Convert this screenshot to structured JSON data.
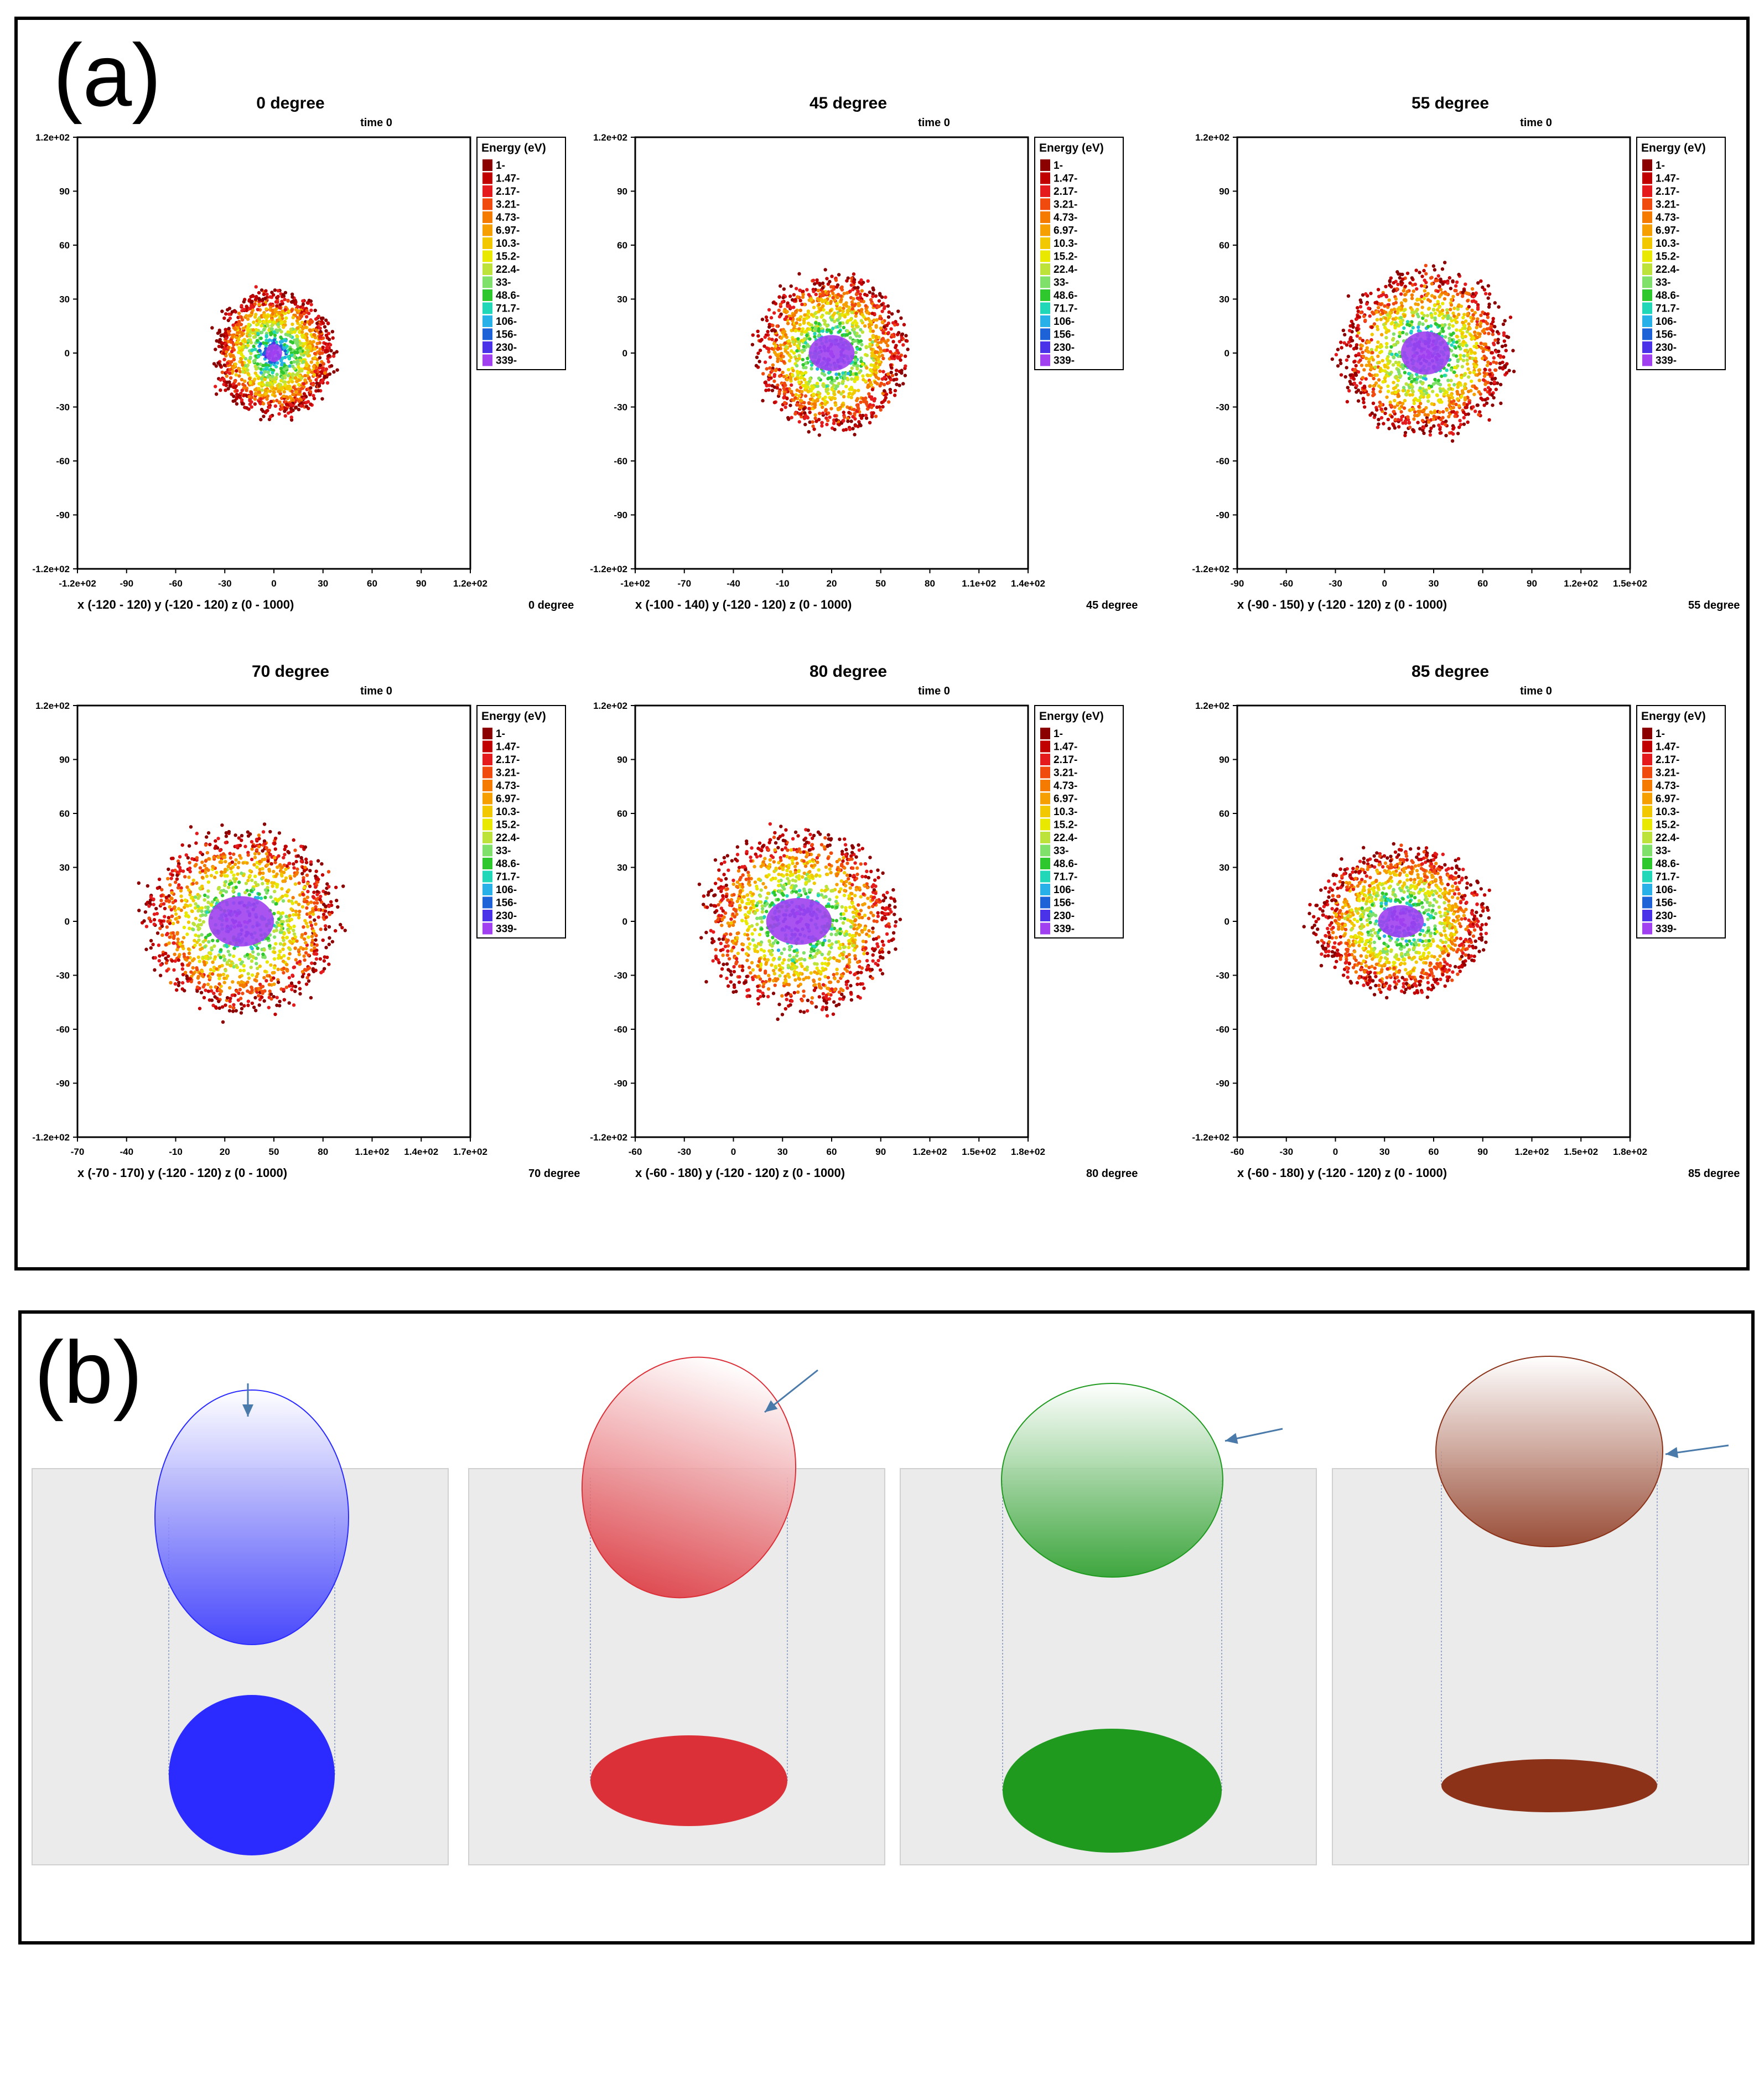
{
  "panel_labels": {
    "a": "(a)",
    "b": "(b)"
  },
  "legend": {
    "title": "Energy (eV)",
    "entries": [
      "1-",
      "1.47-",
      "2.17-",
      "3.21-",
      "4.73-",
      "6.97-",
      "10.3-",
      "15.2-",
      "22.4-",
      "33-",
      "48.6-",
      "71.7-",
      "106-",
      "156-",
      "230-",
      "339-"
    ],
    "colors": [
      "#8b0000",
      "#c00000",
      "#e41a1c",
      "#f04a0f",
      "#f57a00",
      "#f5a000",
      "#f2c800",
      "#e8e800",
      "#bde23a",
      "#7fe06a",
      "#2ec82e",
      "#20d8b8",
      "#28b0e8",
      "#1e62d8",
      "#4a32e8",
      "#a040f0"
    ]
  },
  "chart_data": [
    {
      "type": "scatter",
      "title": "0 degree",
      "subtitle": "time 0",
      "xlabel": "x (-120 - 120) y (-120 - 120) z (0 - 1000)",
      "footnote": "0 degree",
      "xlim": [
        -120,
        120
      ],
      "ylim": [
        -120,
        120
      ],
      "xticks": [
        {
          "v": -120,
          "label": "-1.2e+02"
        },
        {
          "v": -90,
          "label": "-90"
        },
        {
          "v": -60,
          "label": "-60"
        },
        {
          "v": -30,
          "label": "-30"
        },
        {
          "v": 0,
          "label": "0"
        },
        {
          "v": 30,
          "label": "30"
        },
        {
          "v": 60,
          "label": "60"
        },
        {
          "v": 90,
          "label": "90"
        },
        {
          "v": 120,
          "label": "1.2e+02"
        }
      ],
      "yticks": [
        {
          "v": 120,
          "label": "1.2e+02"
        },
        {
          "v": 90,
          "label": "90"
        },
        {
          "v": 60,
          "label": "60"
        },
        {
          "v": 30,
          "label": "30"
        },
        {
          "v": 0,
          "label": "0"
        },
        {
          "v": -30,
          "label": "-30"
        },
        {
          "v": -60,
          "label": "-60"
        },
        {
          "v": -90,
          "label": "-90"
        },
        {
          "v": -120,
          "label": "-1.2e+02"
        }
      ],
      "cloud": {
        "center": [
          0,
          0
        ],
        "radius_x": 36,
        "radius_y": 34,
        "core_radius_x": 5,
        "core_radius_y": 5
      }
    },
    {
      "type": "scatter",
      "title": "45 degree",
      "subtitle": "time 0",
      "xlabel": "x (-100 - 140) y (-120 - 120) z (0 - 1000)",
      "footnote": "45 degree",
      "xlim": [
        -100,
        140
      ],
      "ylim": [
        -120,
        120
      ],
      "xticks": [
        {
          "v": -100,
          "label": "-1e+02"
        },
        {
          "v": -70,
          "label": "-70"
        },
        {
          "v": -40,
          "label": "-40"
        },
        {
          "v": -10,
          "label": "-10"
        },
        {
          "v": 20,
          "label": "20"
        },
        {
          "v": 50,
          "label": "50"
        },
        {
          "v": 80,
          "label": "80"
        },
        {
          "v": 110,
          "label": "1.1e+02"
        },
        {
          "v": 140,
          "label": "1.4e+02"
        }
      ],
      "yticks": [
        {
          "v": 120,
          "label": "1.2e+02"
        },
        {
          "v": 90,
          "label": "90"
        },
        {
          "v": 60,
          "label": "60"
        },
        {
          "v": 30,
          "label": "30"
        },
        {
          "v": 0,
          "label": "0"
        },
        {
          "v": -30,
          "label": "-30"
        },
        {
          "v": -60,
          "label": "-60"
        },
        {
          "v": -90,
          "label": "-90"
        },
        {
          "v": -120,
          "label": "-1.2e+02"
        }
      ],
      "cloud": {
        "center": [
          20,
          0
        ],
        "radius_x": 45,
        "radius_y": 43,
        "core_radius_x": 14,
        "core_radius_y": 10
      }
    },
    {
      "type": "scatter",
      "title": "55 degree",
      "subtitle": "time 0",
      "xlabel": "x (-90 - 150) y (-120 - 120) z (0 - 1000)",
      "footnote": "55 degree",
      "xlim": [
        -90,
        150
      ],
      "ylim": [
        -120,
        120
      ],
      "xticks": [
        {
          "v": -90,
          "label": "-90"
        },
        {
          "v": -60,
          "label": "-60"
        },
        {
          "v": -30,
          "label": "-30"
        },
        {
          "v": 0,
          "label": "0"
        },
        {
          "v": 30,
          "label": "30"
        },
        {
          "v": 60,
          "label": "60"
        },
        {
          "v": 90,
          "label": "90"
        },
        {
          "v": 120,
          "label": "1.2e+02"
        },
        {
          "v": 150,
          "label": "1.5e+02"
        }
      ],
      "yticks": [
        {
          "v": 120,
          "label": "1.2e+02"
        },
        {
          "v": 90,
          "label": "90"
        },
        {
          "v": 60,
          "label": "60"
        },
        {
          "v": 30,
          "label": "30"
        },
        {
          "v": 0,
          "label": "0"
        },
        {
          "v": -30,
          "label": "-30"
        },
        {
          "v": -60,
          "label": "-60"
        },
        {
          "v": -90,
          "label": "-90"
        },
        {
          "v": -120,
          "label": "-1.2e+02"
        }
      ],
      "cloud": {
        "center": [
          25,
          0
        ],
        "radius_x": 50,
        "radius_y": 46,
        "core_radius_x": 15,
        "core_radius_y": 12
      }
    },
    {
      "type": "scatter",
      "title": "70 degree",
      "subtitle": "time 0",
      "xlabel": "x (-70 - 170) y (-120 - 120) z (0 - 1000)",
      "footnote": "70 degree",
      "xlim": [
        -70,
        170
      ],
      "ylim": [
        -120,
        120
      ],
      "xticks": [
        {
          "v": -70,
          "label": "-70"
        },
        {
          "v": -40,
          "label": "-40"
        },
        {
          "v": -10,
          "label": "-10"
        },
        {
          "v": 20,
          "label": "20"
        },
        {
          "v": 50,
          "label": "50"
        },
        {
          "v": 80,
          "label": "80"
        },
        {
          "v": 110,
          "label": "1.1e+02"
        },
        {
          "v": 140,
          "label": "1.4e+02"
        },
        {
          "v": 170,
          "label": "1.7e+02"
        }
      ],
      "yticks": [
        {
          "v": 120,
          "label": "1.2e+02"
        },
        {
          "v": 90,
          "label": "90"
        },
        {
          "v": 60,
          "label": "60"
        },
        {
          "v": 30,
          "label": "30"
        },
        {
          "v": 0,
          "label": "0"
        },
        {
          "v": -30,
          "label": "-30"
        },
        {
          "v": -60,
          "label": "-60"
        },
        {
          "v": -90,
          "label": "-90"
        },
        {
          "v": -120,
          "label": "-1.2e+02"
        }
      ],
      "cloud": {
        "center": [
          30,
          0
        ],
        "radius_x": 58,
        "radius_y": 50,
        "core_radius_x": 20,
        "core_radius_y": 14
      }
    },
    {
      "type": "scatter",
      "title": "80 degree",
      "subtitle": "time 0",
      "xlabel": "x (-60 - 180) y (-120 - 120) z (0 - 1000)",
      "footnote": "80 degree",
      "xlim": [
        -60,
        180
      ],
      "ylim": [
        -120,
        120
      ],
      "xticks": [
        {
          "v": -60,
          "label": "-60"
        },
        {
          "v": -30,
          "label": "-30"
        },
        {
          "v": 0,
          "label": "0"
        },
        {
          "v": 30,
          "label": "30"
        },
        {
          "v": 60,
          "label": "60"
        },
        {
          "v": 90,
          "label": "90"
        },
        {
          "v": 120,
          "label": "1.2e+02"
        },
        {
          "v": 150,
          "label": "1.5e+02"
        },
        {
          "v": 180,
          "label": "1.8e+02"
        }
      ],
      "yticks": [
        {
          "v": 120,
          "label": "1.2e+02"
        },
        {
          "v": 90,
          "label": "90"
        },
        {
          "v": 60,
          "label": "60"
        },
        {
          "v": 30,
          "label": "30"
        },
        {
          "v": 0,
          "label": "0"
        },
        {
          "v": -30,
          "label": "-30"
        },
        {
          "v": -60,
          "label": "-60"
        },
        {
          "v": -90,
          "label": "-90"
        },
        {
          "v": -120,
          "label": "-1.2e+02"
        }
      ],
      "cloud": {
        "center": [
          40,
          0
        ],
        "radius_x": 58,
        "radius_y": 50,
        "core_radius_x": 20,
        "core_radius_y": 13
      }
    },
    {
      "type": "scatter",
      "title": "85 degree",
      "subtitle": "time 0",
      "xlabel": "x (-60 - 180) y (-120 - 120) z (0 - 1000)",
      "footnote": "85 degree",
      "xlim": [
        -60,
        180
      ],
      "ylim": [
        -120,
        120
      ],
      "xticks": [
        {
          "v": -60,
          "label": "-60"
        },
        {
          "v": -30,
          "label": "-30"
        },
        {
          "v": 0,
          "label": "0"
        },
        {
          "v": 30,
          "label": "30"
        },
        {
          "v": 60,
          "label": "60"
        },
        {
          "v": 90,
          "label": "90"
        },
        {
          "v": 120,
          "label": "1.2e+02"
        },
        {
          "v": 150,
          "label": "1.5e+02"
        },
        {
          "v": 180,
          "label": "1.8e+02"
        }
      ],
      "yticks": [
        {
          "v": 120,
          "label": "1.2e+02"
        },
        {
          "v": 90,
          "label": "90"
        },
        {
          "v": 60,
          "label": "60"
        },
        {
          "v": 30,
          "label": "30"
        },
        {
          "v": 0,
          "label": "0"
        },
        {
          "v": -30,
          "label": "-30"
        },
        {
          "v": -60,
          "label": "-60"
        },
        {
          "v": -90,
          "label": "-90"
        },
        {
          "v": -120,
          "label": "-1.2e+02"
        }
      ],
      "cloud": {
        "center": [
          40,
          0
        ],
        "radius_x": 52,
        "radius_y": 40,
        "core_radius_x": 14,
        "core_radius_y": 9
      }
    }
  ],
  "diagram_b": {
    "columns": [
      {
        "name": "blue",
        "color": "#2b2bff",
        "highlight": "#ffffff"
      },
      {
        "name": "red",
        "color": "#dc3038",
        "highlight": "#ffffff"
      },
      {
        "name": "green",
        "color": "#1f9a1f",
        "highlight": "#ffffff"
      },
      {
        "name": "brown",
        "color": "#8b3218",
        "highlight": "#ffffff"
      }
    ],
    "arrow_color": "#4a7aaa",
    "panel_color": "#ebebeb"
  }
}
